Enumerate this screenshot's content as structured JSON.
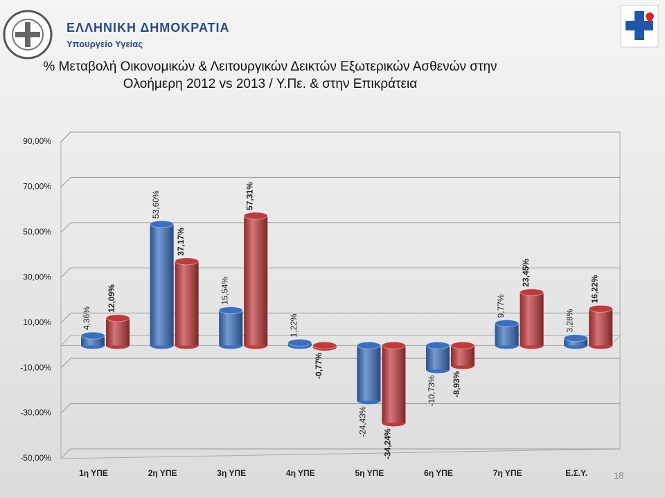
{
  "header": {
    "country": "ΕΛΛΗΝΙΚΗ ΔΗΜΟΚΡΑΤΙΑ",
    "ministry": "Υπουργείο Υγείας"
  },
  "page_number": "18",
  "chart_data": {
    "type": "bar",
    "title": "% Μεταβολή Οικονομικών & Λειτουργικών Δεικτών Εξωτερικών Ασθενών στην Ολοήμερη 2012 vs 2013 / Υ.Πε. & στην Επικράτεια",
    "categories": [
      "1η ΥΠΕ",
      "2η ΥΠΕ",
      "3η ΥΠΕ",
      "4η ΥΠΕ",
      "5η ΥΠΕ",
      "6η ΥΠΕ",
      "7η ΥΠΕ",
      "Ε.Σ.Υ."
    ],
    "series": [
      {
        "color": "#3a6fc0",
        "values": [
          4.36,
          53.6,
          15.54,
          1.22,
          -24.43,
          -10.73,
          9.77,
          3.28
        ],
        "value_labels": [
          "4,36%",
          "53,60%",
          "15,54%",
          "1,22%",
          "-24,43%",
          "-10,73%",
          "9,77%",
          "3,28%"
        ]
      },
      {
        "color": "#c0393b",
        "values": [
          12.09,
          37.17,
          57.31,
          -0.77,
          -34.24,
          -8.93,
          23.45,
          16.22
        ],
        "value_labels": [
          "12,09%",
          "37,17%",
          "57,31%",
          "-0,77%",
          "-34,24%",
          "-8,93%",
          "23,45%",
          "16,22%"
        ]
      }
    ],
    "ylim": [
      -50,
      90
    ],
    "yticks": [
      {
        "value": -50,
        "label": "-50,00%"
      },
      {
        "value": -30,
        "label": "-30,00%"
      },
      {
        "value": -10,
        "label": "-10,00%"
      },
      {
        "value": 10,
        "label": "10,00%"
      },
      {
        "value": 30,
        "label": "30,00%"
      },
      {
        "value": 50,
        "label": "50,00%"
      },
      {
        "value": 70,
        "label": "70,00%"
      },
      {
        "value": 90,
        "label": "90,00%"
      }
    ],
    "grid": true
  }
}
